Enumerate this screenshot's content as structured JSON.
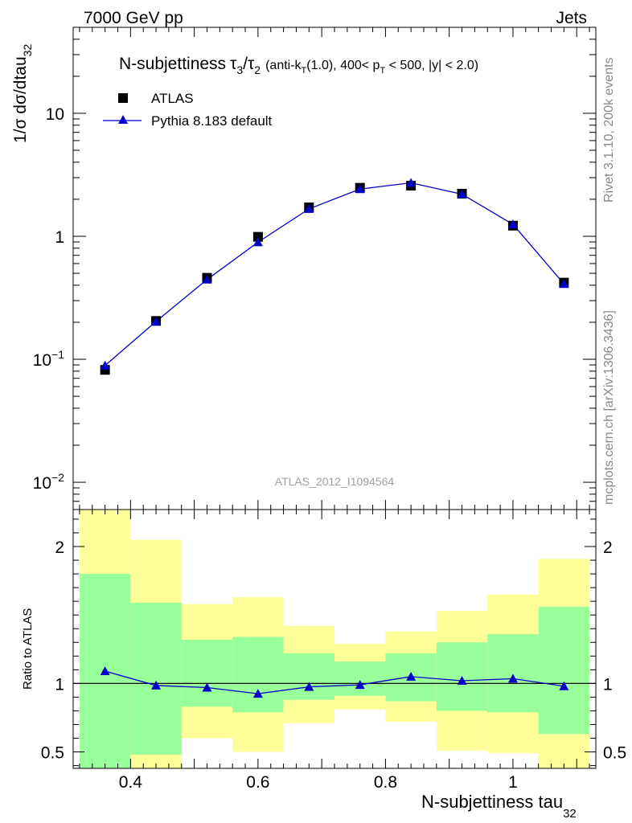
{
  "header": {
    "left": "7000 GeV pp",
    "right": "Jets"
  },
  "side": {
    "rivet": "Rivet 3.1.10,  200k events",
    "mcplots": "mcplots.cern.ch [arXiv:1306.3436]"
  },
  "colors": {
    "data": "#000000",
    "mc": "#0000cc",
    "band_inner": "#99ff99",
    "band_outer": "#ffff99"
  },
  "chart_data": [
    {
      "type": "scatter",
      "title_main": "N-subjettiness",
      "title_math": "τ",
      "title_sub3": "3",
      "title_sub2": "2",
      "title_detail": "(anti-k",
      "title_detail_sub": "T",
      "title_detail2": "(1.0), 400< p",
      "title_detail_sub2": "T",
      "title_detail3": " < 500, |y| < 2.0)",
      "ylabel": "1/σ dσ/dtau",
      "ylabel_sub": "32",
      "yscale": "log",
      "ylim": [
        0.006,
        50
      ],
      "xlim": [
        0.31,
        1.13
      ],
      "yticks": [
        {
          "value": 0.01,
          "base": "10",
          "exp": "−2"
        },
        {
          "value": 0.1,
          "base": "10",
          "exp": "−1"
        },
        {
          "value": 1,
          "base": "1",
          "exp": ""
        },
        {
          "value": 10,
          "base": "10",
          "exp": ""
        }
      ],
      "watermark": "ATLAS_2012_I1094564",
      "legend": [
        {
          "name": "ATLAS",
          "marker": "square"
        },
        {
          "name": "Pythia 8.183 default",
          "marker": "triangle"
        }
      ],
      "x": [
        0.36,
        0.44,
        0.52,
        0.6,
        0.68,
        0.76,
        0.84,
        0.92,
        1.0,
        1.08
      ],
      "series": [
        {
          "name": "ATLAS",
          "values": [
            0.082,
            0.205,
            0.46,
            0.99,
            1.72,
            2.48,
            2.58,
            2.22,
            1.22,
            0.42
          ]
        },
        {
          "name": "Pythia 8.183 default",
          "values": [
            0.089,
            0.203,
            0.445,
            0.895,
            1.67,
            2.42,
            2.72,
            2.2,
            1.25,
            0.41
          ]
        }
      ]
    },
    {
      "type": "ratio",
      "ylabel": "Ratio to ATLAS",
      "xlabel": "N-subjettiness tau",
      "xlabel_sub": "32",
      "ylim": [
        0.38,
        2.27
      ],
      "xticks": [
        {
          "value": 0.4,
          "label": "0.4"
        },
        {
          "value": 0.6,
          "label": "0.6"
        },
        {
          "value": 0.8,
          "label": "0.8"
        },
        {
          "value": 1.0,
          "label": "1"
        }
      ],
      "yticks": [
        {
          "value": 0.5,
          "label": "0.5"
        },
        {
          "value": 1,
          "label": "1"
        },
        {
          "value": 2,
          "label": "2"
        }
      ],
      "bin_edges": [
        0.32,
        0.4,
        0.48,
        0.56,
        0.64,
        0.72,
        0.8,
        0.88,
        0.96,
        1.04,
        1.12
      ],
      "band_inner": [
        [
          0.38,
          1.8
        ],
        [
          0.48,
          1.59
        ],
        [
          0.83,
          1.32
        ],
        [
          0.79,
          1.34
        ],
        [
          0.88,
          1.22
        ],
        [
          0.91,
          1.16
        ],
        [
          0.87,
          1.22
        ],
        [
          0.8,
          1.3
        ],
        [
          0.79,
          1.36
        ],
        [
          0.63,
          1.56
        ]
      ],
      "band_outer": [
        [
          0.38,
          2.27
        ],
        [
          0.38,
          2.05
        ],
        [
          0.6,
          1.58
        ],
        [
          0.5,
          1.63
        ],
        [
          0.71,
          1.42
        ],
        [
          0.81,
          1.29
        ],
        [
          0.72,
          1.38
        ],
        [
          0.51,
          1.53
        ],
        [
          0.49,
          1.65
        ],
        [
          0.38,
          1.91
        ]
      ],
      "x": [
        0.36,
        0.44,
        0.52,
        0.6,
        0.68,
        0.76,
        0.84,
        0.92,
        1.0,
        1.08
      ],
      "values": [
        1.09,
        0.985,
        0.97,
        0.925,
        0.975,
        0.99,
        1.05,
        1.02,
        1.035,
        0.98
      ],
      "errors": [
        0.03,
        0.015,
        0.01,
        0.01,
        0.01,
        0.01,
        0.01,
        0.01,
        0.01,
        0.01
      ]
    }
  ]
}
